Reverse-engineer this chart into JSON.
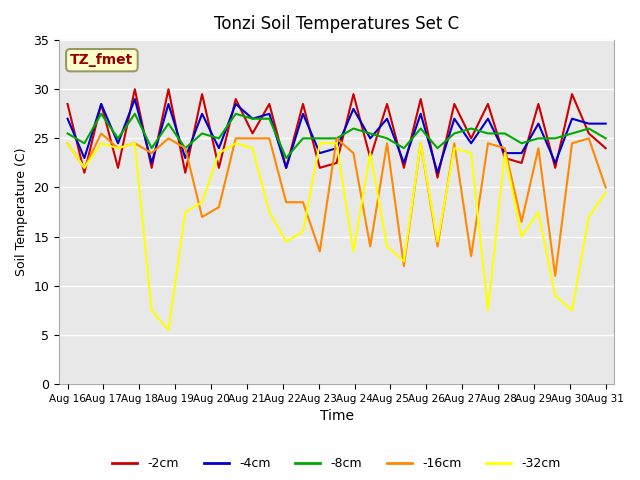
{
  "title": "Tonzi Soil Temperatures Set C",
  "xlabel": "Time",
  "ylabel": "Soil Temperature (C)",
  "ylim": [
    0,
    35
  ],
  "yticks": [
    0,
    5,
    10,
    15,
    20,
    25,
    30,
    35
  ],
  "background_color": "#e8e8e8",
  "plot_bg_color": "#e8e8e8",
  "grid_color": "white",
  "legend_label": "TZ_fmet",
  "legend_bg": "#ffffcc",
  "legend_border": "#999966",
  "series_colors": {
    "-2cm": "#cc0000",
    "-4cm": "#0000cc",
    "-8cm": "#00aa00",
    "-16cm": "#ff8800",
    "-32cm": "#ffff00"
  },
  "x_tick_labels": [
    "Aug 16",
    "Aug 17",
    "Aug 18",
    "Aug 19",
    "Aug 20",
    "Aug 21",
    "Aug 22",
    "Aug 23",
    "Aug 24",
    "Aug 25",
    "Aug 26",
    "Aug 27",
    "Aug 28",
    "Aug 29",
    "Aug 30",
    "Aug 31"
  ],
  "series": {
    "-2cm": [
      28.5,
      21.5,
      28.5,
      22.0,
      30.0,
      22.0,
      30.0,
      21.5,
      29.5,
      22.0,
      29.0,
      25.5,
      28.5,
      22.0,
      28.5,
      22.0,
      22.5,
      29.5,
      23.0,
      28.5,
      22.0,
      29.0,
      21.0,
      28.5,
      25.0,
      28.5,
      23.0,
      22.5,
      28.5,
      22.0,
      29.5,
      25.5,
      24.0
    ],
    "-4cm": [
      27.0,
      23.0,
      28.5,
      24.5,
      29.0,
      22.5,
      28.5,
      23.0,
      27.5,
      24.0,
      28.5,
      27.0,
      27.5,
      22.0,
      27.5,
      23.5,
      24.0,
      28.0,
      25.0,
      27.0,
      22.5,
      27.5,
      21.5,
      27.0,
      24.5,
      27.0,
      23.5,
      23.5,
      26.5,
      22.5,
      27.0,
      26.5,
      26.5
    ],
    "-8cm": [
      25.5,
      24.5,
      27.5,
      25.0,
      27.5,
      24.0,
      26.5,
      24.0,
      25.5,
      25.0,
      27.5,
      27.0,
      27.0,
      23.0,
      25.0,
      25.0,
      25.0,
      26.0,
      25.5,
      25.0,
      24.0,
      26.0,
      24.0,
      25.5,
      26.0,
      25.5,
      25.5,
      24.5,
      25.0,
      25.0,
      25.5,
      26.0,
      25.0
    ],
    "-16cm": [
      24.5,
      22.0,
      25.5,
      24.0,
      24.5,
      23.5,
      25.0,
      24.0,
      17.0,
      18.0,
      25.0,
      25.0,
      25.0,
      18.5,
      18.5,
      13.5,
      25.0,
      23.5,
      14.0,
      24.5,
      12.0,
      24.5,
      14.0,
      24.5,
      13.0,
      24.5,
      24.0,
      16.5,
      24.0,
      11.0,
      24.5,
      25.0,
      20.0
    ],
    "-32cm": [
      24.5,
      22.0,
      24.5,
      24.0,
      24.5,
      7.5,
      5.5,
      17.5,
      18.5,
      23.5,
      24.5,
      24.0,
      17.5,
      14.5,
      15.5,
      24.5,
      24.5,
      13.5,
      23.5,
      14.0,
      12.5,
      24.5,
      14.5,
      24.0,
      23.5,
      7.5,
      23.5,
      15.0,
      17.5,
      9.0,
      7.5,
      17.0,
      19.5
    ]
  },
  "n_points": 33
}
